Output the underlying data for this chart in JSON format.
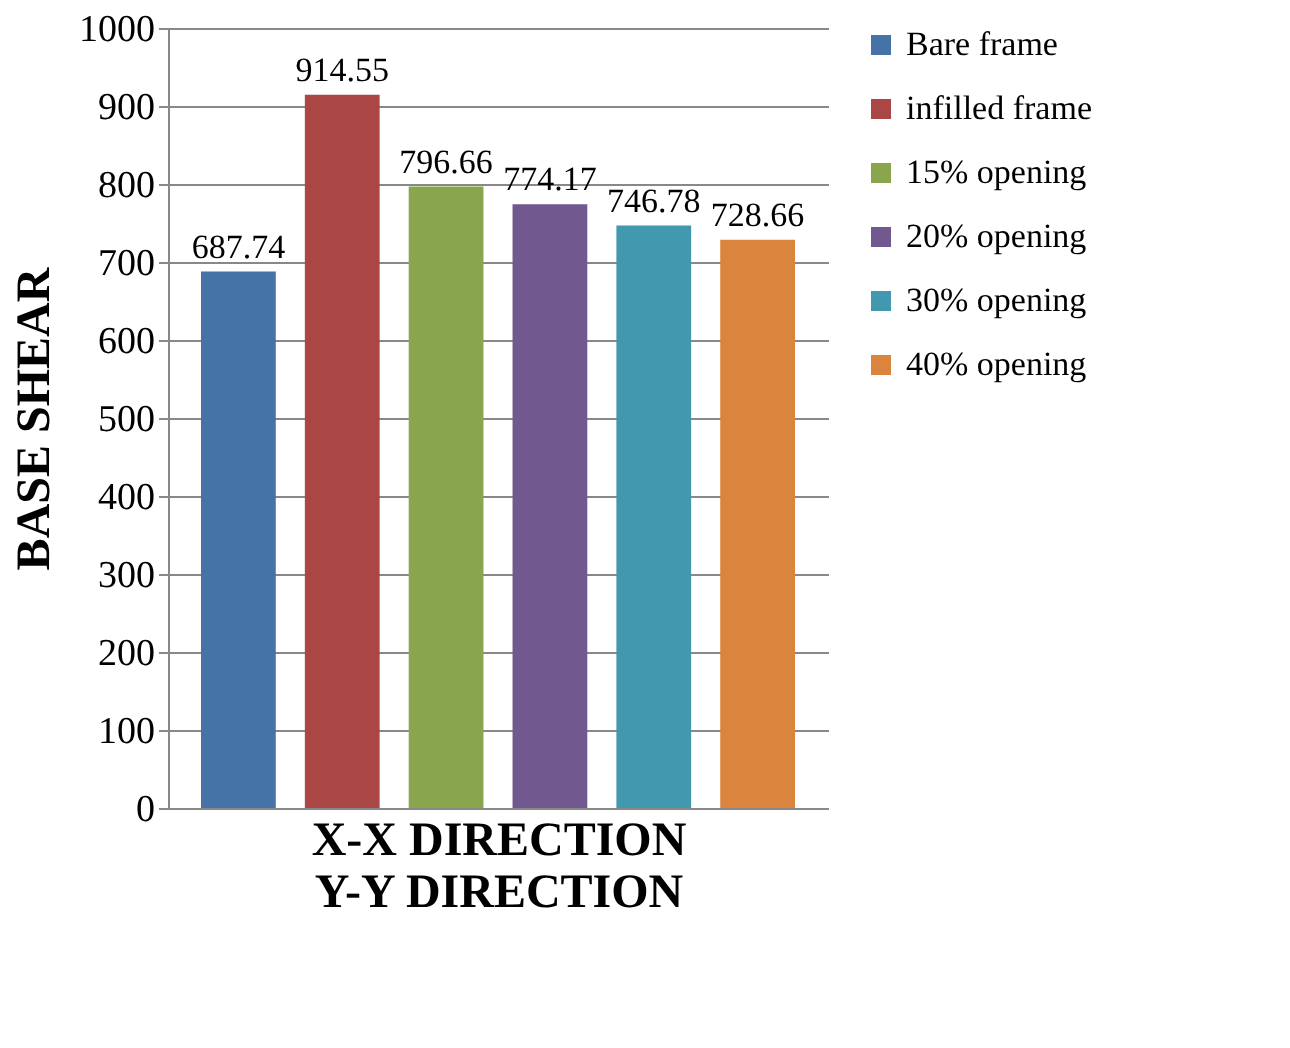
{
  "chart_data": {
    "type": "bar",
    "xlabel": "X-X DIRECTION\nY-Y DIRECTION",
    "ylabel": "BASE SHEAR",
    "categories": [
      null
    ],
    "series": [
      {
        "name": "Bare frame",
        "color": "#4572a7",
        "values": [
          687.74
        ]
      },
      {
        "name": "infilled frame",
        "color": "#aa4643",
        "values": [
          914.55
        ]
      },
      {
        "name": "15% opening",
        "color": "#89a54e",
        "values": [
          796.66
        ]
      },
      {
        "name": "20% opening",
        "color": "#71588f",
        "values": [
          774.17
        ]
      },
      {
        "name": "30% opening",
        "color": "#4198af",
        "values": [
          746.78
        ]
      },
      {
        "name": "40% opening",
        "color": "#db843d",
        "values": [
          728.66
        ]
      }
    ],
    "ylim": [
      0,
      1000
    ],
    "yticks": [
      0,
      100,
      200,
      300,
      400,
      500,
      600,
      700,
      800,
      900,
      1000
    ],
    "grid": "y",
    "legend": "right",
    "data_labels": true,
    "tick_labels": "y"
  }
}
